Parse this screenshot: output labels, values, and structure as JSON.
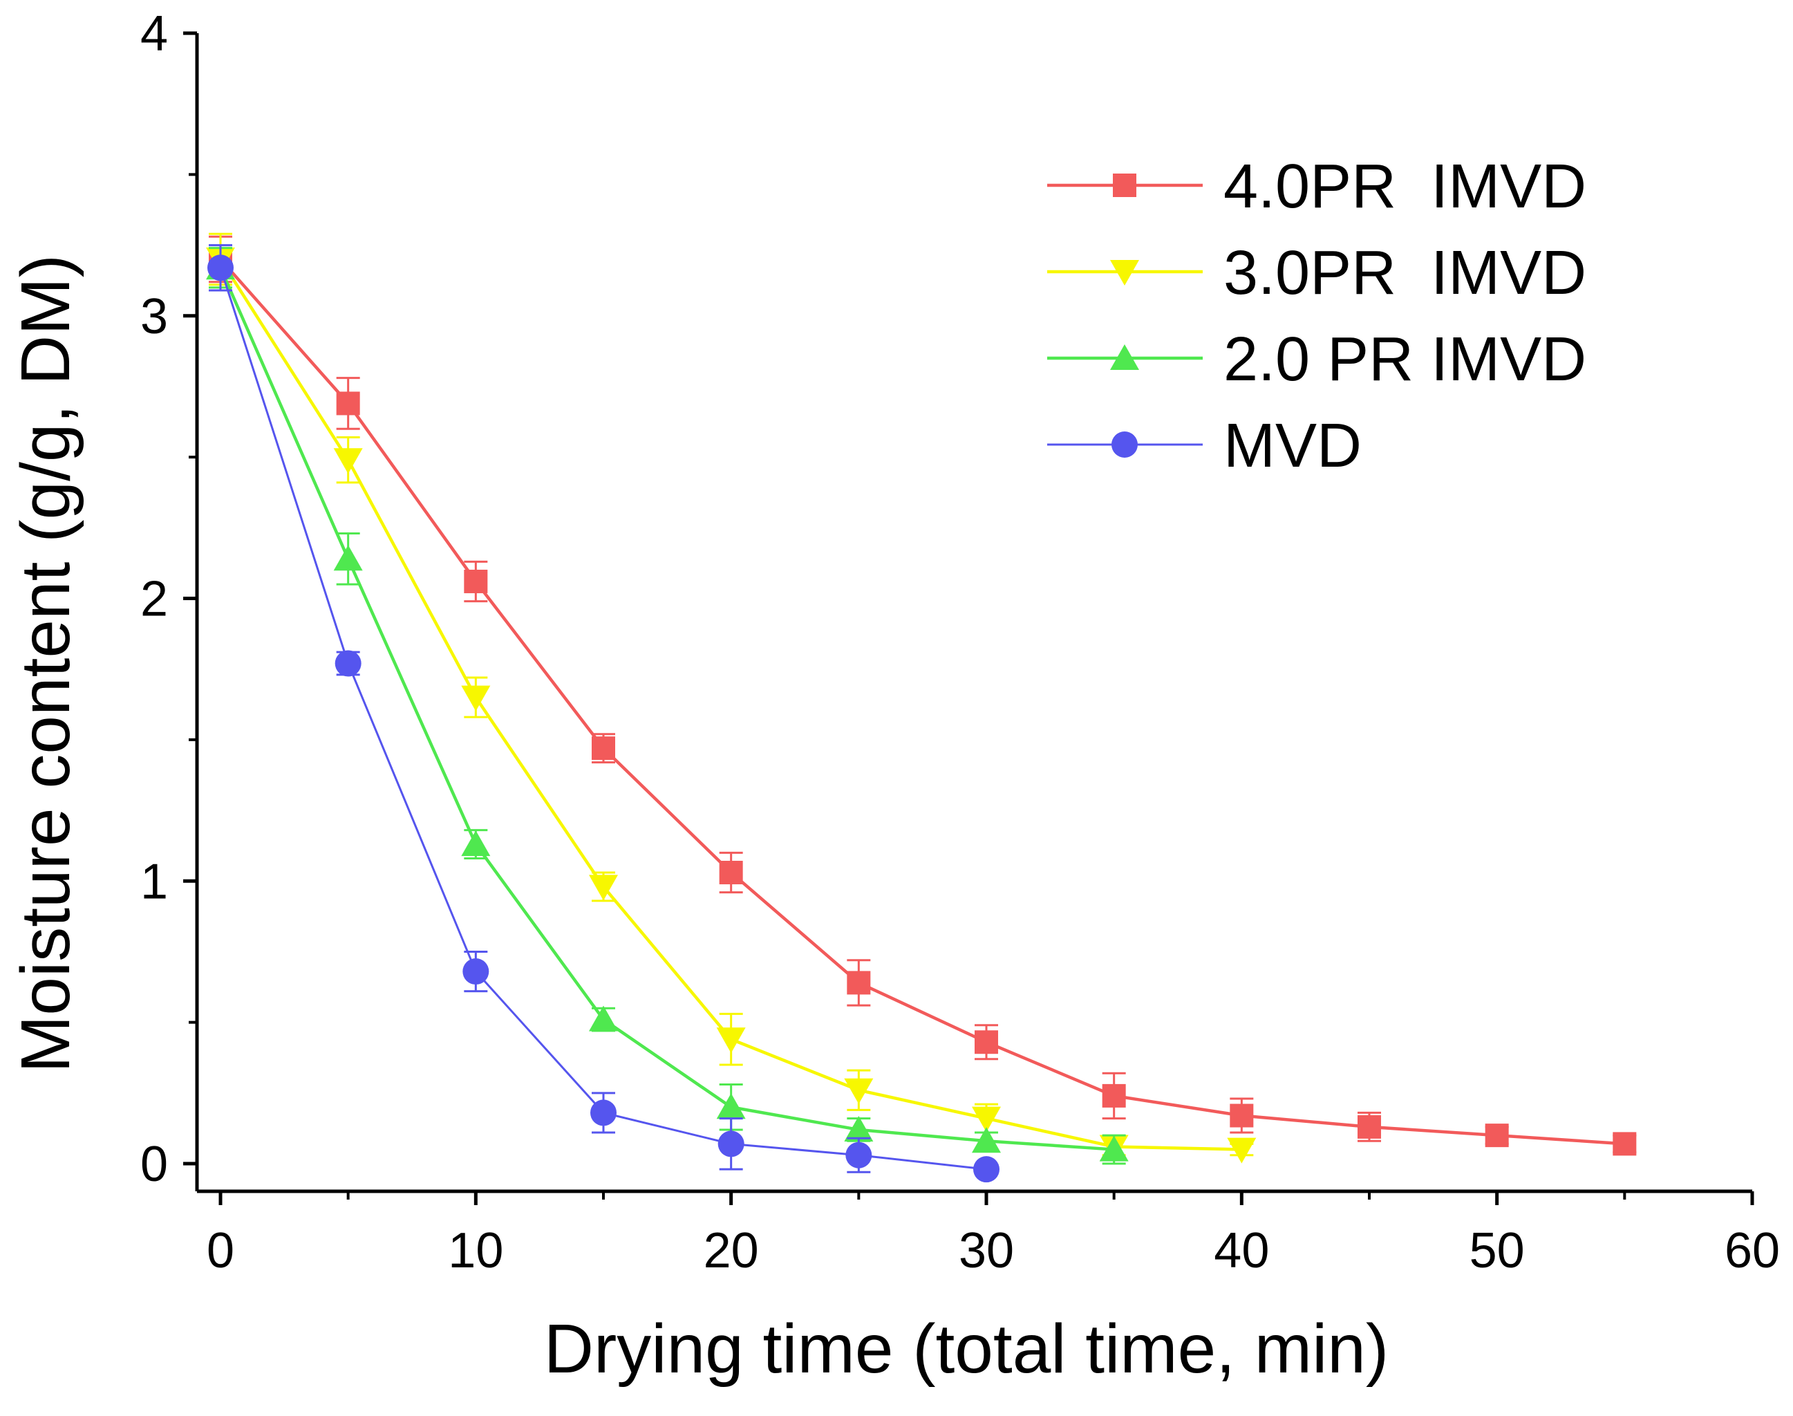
{
  "chart_data": {
    "type": "line",
    "title": "",
    "xlabel": "Drying time (total time, min)",
    "ylabel": "Moisture content (g/g, DM)",
    "xlim": [
      -1,
      60
    ],
    "ylim": [
      -0.1,
      4
    ],
    "xticks": [
      0,
      10,
      20,
      30,
      40,
      50,
      60
    ],
    "yticks": [
      0,
      1,
      2,
      3,
      4
    ],
    "grid": false,
    "legend_position": "top-right",
    "series": [
      {
        "name": "4.0PR  IMVD",
        "color": "#f25a5a",
        "marker": "square",
        "x": [
          0,
          5,
          10,
          15,
          20,
          25,
          30,
          35,
          40,
          45,
          50,
          55
        ],
        "y": [
          3.2,
          2.69,
          2.06,
          1.47,
          1.03,
          0.64,
          0.43,
          0.24,
          0.17,
          0.13,
          0.1,
          0.07
        ],
        "err": [
          0.08,
          0.09,
          0.07,
          0.05,
          0.07,
          0.08,
          0.06,
          0.08,
          0.06,
          0.05,
          0.03,
          0.03
        ]
      },
      {
        "name": "3.0PR  IMVD",
        "color": "#f7f700",
        "marker": "triangle-down",
        "x": [
          0,
          5,
          10,
          15,
          20,
          25,
          30,
          35,
          40
        ],
        "y": [
          3.2,
          2.49,
          1.65,
          0.98,
          0.44,
          0.26,
          0.16,
          0.06,
          0.05
        ],
        "err": [
          0.09,
          0.08,
          0.07,
          0.05,
          0.09,
          0.07,
          0.05,
          0.03,
          0.02
        ]
      },
      {
        "name": "2.0 PR IMVD",
        "color": "#4fe84f",
        "marker": "triangle-up",
        "x": [
          0,
          5,
          10,
          15,
          20,
          25,
          30,
          35
        ],
        "y": [
          3.17,
          2.14,
          1.13,
          0.51,
          0.2,
          0.12,
          0.08,
          0.05
        ],
        "err": [
          0.07,
          0.09,
          0.05,
          0.04,
          0.08,
          0.04,
          0.03,
          0.05
        ]
      },
      {
        "name": "MVD",
        "color": "#5555ee",
        "marker": "circle",
        "x": [
          0,
          5,
          10,
          15,
          20,
          25,
          30
        ],
        "y": [
          3.17,
          1.77,
          0.68,
          0.18,
          0.07,
          0.03,
          -0.02
        ],
        "err": [
          0.08,
          0.04,
          0.07,
          0.07,
          0.09,
          0.06,
          0.0
        ]
      }
    ]
  }
}
